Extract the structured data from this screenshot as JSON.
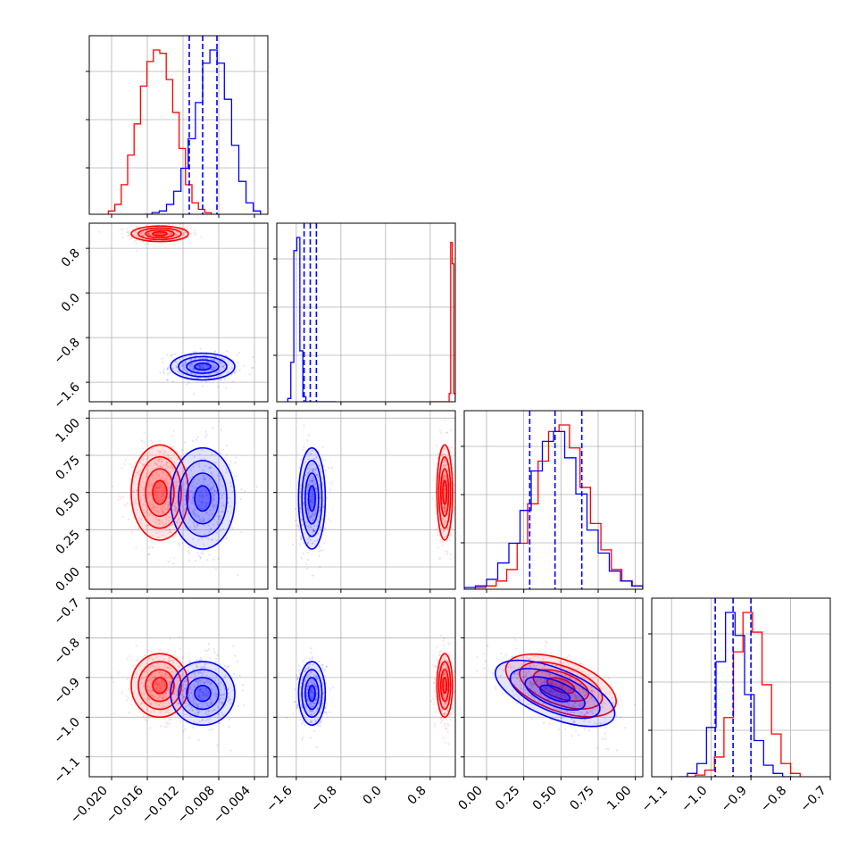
{
  "chart_data": {
    "type": "corner",
    "grid": true,
    "colors": {
      "red_series": "#ff0000",
      "blue_series": "#0000ff"
    },
    "parameters": [
      {
        "id": "p0",
        "range": [
          -0.0225,
          -0.0025
        ],
        "tick_values": [
          -0.02,
          -0.016,
          -0.012,
          -0.008,
          -0.004
        ],
        "tick_labels": [
          "−0.020",
          "−0.016",
          "−0.012",
          "−0.008",
          "−0.004"
        ]
      },
      {
        "id": "p1",
        "range": [
          -1.95,
          1.25
        ],
        "tick_values": [
          -1.6,
          -0.8,
          0.0,
          0.8
        ],
        "tick_labels": [
          "−1.6",
          "−0.8",
          "0.0",
          "0.8"
        ]
      },
      {
        "id": "p2",
        "range": [
          -0.15,
          1.05
        ],
        "tick_values": [
          0.0,
          0.25,
          0.5,
          0.75,
          1.0
        ],
        "tick_labels": [
          "0.00",
          "0.25",
          "0.50",
          "0.75",
          "1.00"
        ]
      },
      {
        "id": "p3",
        "range": [
          -1.15,
          -0.7
        ],
        "tick_values": [
          -1.1,
          -1.0,
          -0.9,
          -0.8,
          -0.7
        ],
        "tick_labels": [
          "−1.1",
          "−1.0",
          "−0.9",
          "−0.8",
          "−0.7"
        ]
      }
    ],
    "series": [
      {
        "color": "red",
        "params": [
          {
            "mean": -0.0146,
            "sd": 0.0016,
            "hist": [
              0.02,
              0.06,
              0.18,
              0.36,
              0.55,
              0.78,
              0.93,
              1.0,
              0.98,
              0.82,
              0.62,
              0.4,
              0.18,
              0.07,
              0.03,
              0.01
            ]
          },
          {
            "mean": 1.06,
            "sd": 0.07,
            "hist": [
              0,
              0,
              0,
              0,
              0,
              0,
              0,
              0,
              0,
              0,
              0,
              0,
              0.05,
              0.97,
              0.84,
              0.05
            ]
          },
          {
            "mean": 0.5,
            "sd": 0.16,
            "hist": [
              0.01,
              0.02,
              0.05,
              0.12,
              0.28,
              0.52,
              0.78,
              0.96,
              1.0,
              0.86,
              0.62,
              0.4,
              0.24,
              0.12,
              0.05,
              0.02
            ]
          },
          {
            "mean": -0.92,
            "sd": 0.04,
            "hist": [
              0,
              0.01,
              0.04,
              0.12,
              0.36,
              0.76,
              1.0,
              0.88,
              0.56,
              0.26,
              0.08,
              0.02
            ]
          }
        ]
      },
      {
        "color": "blue",
        "params": [
          {
            "mean": -0.0098,
            "sd": 0.0018,
            "hist": [
              0,
              0.01,
              0.02,
              0.06,
              0.14,
              0.28,
              0.46,
              0.68,
              0.92,
              1.0,
              0.92,
              0.7,
              0.42,
              0.2,
              0.07,
              0.02
            ]
          },
          {
            "mean": -1.32,
            "sd": 0.12,
            "hist": [
              0.02,
              0.24,
              0.92,
              1.0,
              0.31,
              0.03,
              0,
              0,
              0,
              0,
              0,
              0,
              0,
              0,
              0,
              0
            ]
          },
          {
            "mean": 0.46,
            "sd": 0.17,
            "hist": [
              0.01,
              0.02,
              0.06,
              0.16,
              0.28,
              0.48,
              0.72,
              0.9,
              0.96,
              0.8,
              0.58,
              0.36,
              0.22,
              0.11,
              0.05,
              0.02
            ]
          },
          {
            "mean": -0.94,
            "sd": 0.04,
            "hist": [
              0,
              0.02,
              0.08,
              0.3,
              0.7,
              1.0,
              0.86,
              0.5,
              0.22,
              0.07,
              0.02,
              0
            ]
          }
        ]
      }
    ],
    "correlations": {
      "red": {
        "p2_p3": -0.55
      },
      "blue": {
        "p2_p3": -0.65
      }
    },
    "quantile_lines": {
      "color": "blue",
      "style": "dashed",
      "p0": [
        -0.0113,
        -0.0098,
        -0.0082
      ],
      "p1": [
        -1.46,
        -1.35,
        -1.24
      ],
      "p2": [
        0.29,
        0.46,
        0.64
      ],
      "p3": [
        -0.99,
        -0.945,
        -0.9
      ]
    }
  }
}
